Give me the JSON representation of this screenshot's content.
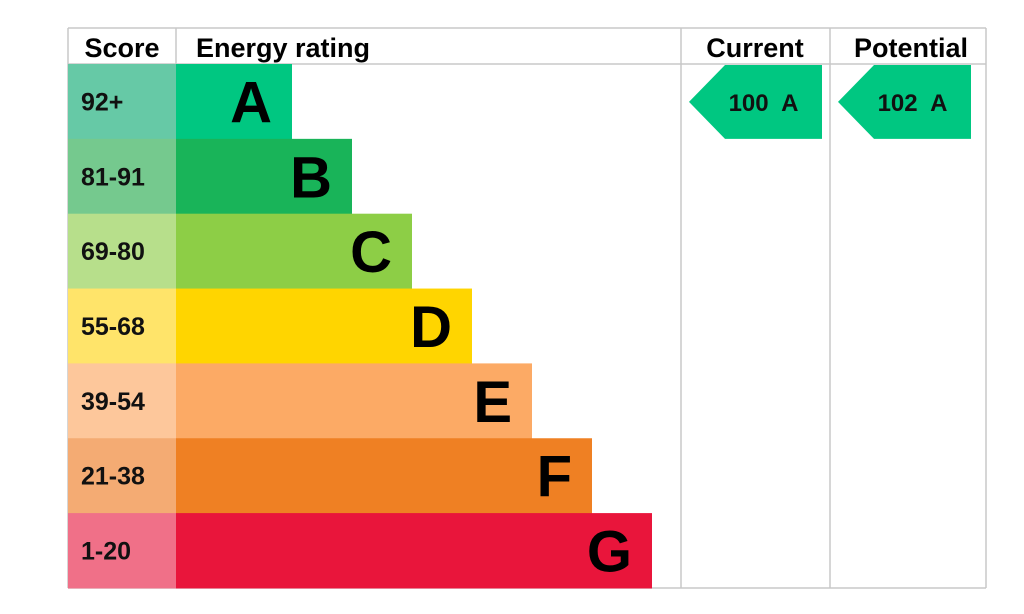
{
  "chart_data": {
    "type": "bar",
    "headers": {
      "score": "Score",
      "rating": "Energy rating",
      "current": "Current",
      "potential": "Potential"
    },
    "bands": [
      {
        "letter": "A",
        "range": "92+",
        "bar_color": "#00c781",
        "score_color": "#66c9a6",
        "length": 1
      },
      {
        "letter": "B",
        "range": "81-91",
        "bar_color": "#19b459",
        "score_color": "#75c98e",
        "length": 2
      },
      {
        "letter": "C",
        "range": "69-80",
        "bar_color": "#8dce46",
        "score_color": "#b7df8b",
        "length": 3
      },
      {
        "letter": "D",
        "range": "55-68",
        "bar_color": "#ffd500",
        "score_color": "#ffe46a",
        "length": 4
      },
      {
        "letter": "E",
        "range": "39-54",
        "bar_color": "#fcaa65",
        "score_color": "#fdc79b",
        "length": 5
      },
      {
        "letter": "F",
        "range": "21-38",
        "bar_color": "#ef8023",
        "score_color": "#f4ab73",
        "length": 6
      },
      {
        "letter": "G",
        "range": "1-20",
        "bar_color": "#e9153b",
        "score_color": "#f07088",
        "length": 7
      }
    ],
    "current": {
      "value": 100,
      "band": "A",
      "label": "100  A",
      "color": "#00c781"
    },
    "potential": {
      "value": 102,
      "band": "A",
      "label": "102  A",
      "color": "#00c781"
    }
  }
}
